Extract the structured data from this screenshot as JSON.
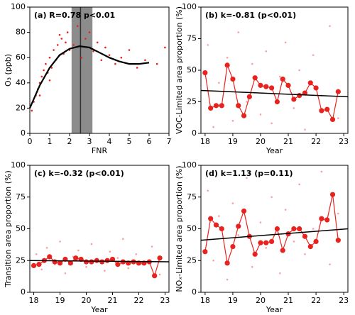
{
  "chart_data": [
    {
      "type": "scatter",
      "label": "(a) R=0.78 p<0.01",
      "xlabel": "FNR",
      "ylabel": "O₃ (ppb)",
      "xlim": [
        0,
        7
      ],
      "xticks": [
        0,
        1,
        2,
        3,
        4,
        5,
        6,
        7
      ],
      "ylim": [
        0,
        100
      ],
      "yticks": [
        0,
        20,
        40,
        60,
        80,
        100
      ],
      "band": [
        2.1,
        3.15
      ],
      "band_color": "#8c8c8c",
      "vline": 2.55,
      "vline_color": "#333333",
      "cloud": {
        "color": "#e8231f",
        "x": [
          0.1,
          0.2,
          0.3,
          0.4,
          0.5,
          0.6,
          0.7,
          0.8,
          0.9,
          1.0,
          1.1,
          1.2,
          1.3,
          1.4,
          1.5,
          1.6,
          1.7,
          1.8,
          1.9,
          2.0,
          2.2,
          2.4,
          2.6,
          2.8,
          3.0,
          3.2,
          3.4,
          3.6,
          3.8,
          4.0,
          4.3,
          4.6,
          5.0,
          5.4,
          5.8,
          6.4,
          6.8,
          0.5,
          1.0,
          1.5
        ],
        "values": [
          18,
          25,
          30,
          35,
          40,
          45,
          50,
          55,
          48,
          60,
          52,
          66,
          58,
          70,
          62,
          75,
          63,
          72,
          80,
          66,
          70,
          85,
          60,
          75,
          80,
          65,
          72,
          58,
          68,
          62,
          55,
          60,
          66,
          52,
          58,
          55,
          68,
          30,
          42,
          78
        ]
      },
      "fit": {
        "color": "#000000",
        "x": [
          0,
          0.5,
          1,
          1.5,
          2,
          2.5,
          3,
          3.5,
          4,
          4.5,
          5,
          5.5,
          6
        ],
        "values": [
          20,
          38,
          52,
          62,
          67,
          69,
          68,
          64,
          60,
          57,
          55,
          55,
          56
        ]
      }
    },
    {
      "type": "scatter",
      "label": "(b)  k=-0.81 (p<0.01)",
      "xlabel": "Year",
      "ylabel": "VOC-Limited area proportion (%)",
      "xlim": [
        17.85,
        23.15
      ],
      "xticks": [
        18,
        19,
        20,
        21,
        22,
        23
      ],
      "ylim": [
        0,
        100
      ],
      "yticks": [
        0,
        25,
        50,
        75,
        100
      ],
      "cloud": {
        "color": "#f4a3a0",
        "x": [
          18.1,
          18.3,
          18.5,
          18.8,
          19.0,
          19.2,
          19.5,
          19.7,
          20.0,
          20.2,
          20.4,
          20.7,
          20.9,
          21.2,
          21.4,
          21.6,
          21.9,
          22.2,
          22.5,
          22.8
        ],
        "values": [
          70,
          5,
          40,
          60,
          10,
          80,
          25,
          55,
          15,
          65,
          8,
          45,
          72,
          20,
          50,
          3,
          62,
          30,
          85,
          12
        ]
      },
      "series": [
        {
          "color": "#e8231f",
          "x": [
            18.0,
            18.2,
            18.4,
            18.6,
            18.8,
            19.0,
            19.2,
            19.4,
            19.6,
            19.8,
            20.0,
            20.2,
            20.4,
            20.6,
            20.8,
            21.0,
            21.2,
            21.4,
            21.6,
            21.8,
            22.0,
            22.2,
            22.4,
            22.6,
            22.8
          ],
          "values": [
            48,
            20,
            22,
            22,
            54,
            43,
            22,
            14,
            29,
            44,
            38,
            37,
            36,
            25,
            43,
            38,
            27,
            30,
            32,
            40,
            36,
            18,
            19,
            11,
            33
          ]
        }
      ],
      "fit": {
        "color": "#000000",
        "x": [
          17.85,
          23.15
        ],
        "values": [
          34,
          29
        ]
      }
    },
    {
      "type": "scatter",
      "label": "(c)  k=-0.32 (p<0.01)",
      "xlabel": "Year",
      "ylabel": "Transition area proportion (%)",
      "xlim": [
        17.85,
        23.15
      ],
      "xticks": [
        18,
        19,
        20,
        21,
        22,
        23
      ],
      "ylim": [
        0,
        100
      ],
      "yticks": [
        0,
        25,
        50,
        75,
        100
      ],
      "cloud": {
        "color": "#f4a3a0",
        "x": [
          18.1,
          18.3,
          18.5,
          18.8,
          19.0,
          19.2,
          19.5,
          19.7,
          20.0,
          20.2,
          20.4,
          20.7,
          20.9,
          21.2,
          21.4,
          21.6,
          21.9,
          22.2,
          22.5,
          22.8
        ],
        "values": [
          30,
          18,
          35,
          22,
          40,
          15,
          28,
          33,
          20,
          38,
          25,
          17,
          32,
          27,
          42,
          19,
          30,
          23,
          36,
          14
        ]
      },
      "series": [
        {
          "color": "#e8231f",
          "x": [
            18.0,
            18.2,
            18.4,
            18.6,
            18.8,
            19.0,
            19.2,
            19.4,
            19.6,
            19.8,
            20.0,
            20.2,
            20.4,
            20.6,
            20.8,
            21.0,
            21.2,
            21.4,
            21.6,
            21.8,
            22.0,
            22.2,
            22.4,
            22.6,
            22.8
          ],
          "values": [
            21,
            22,
            25,
            28,
            24,
            23,
            26,
            23,
            27,
            26,
            24,
            24,
            25,
            24,
            25,
            26,
            22,
            24,
            23,
            24,
            23,
            23,
            24,
            13,
            27
          ]
        }
      ],
      "fit": {
        "color": "#000000",
        "x": [
          17.85,
          23.15
        ],
        "values": [
          25,
          24
        ]
      }
    },
    {
      "type": "scatter",
      "label": "(d)  k=1.13 (p=0.11)",
      "xlabel": "Year",
      "ylabel": "NOₓ-Limited area proportion (%)",
      "xlim": [
        17.85,
        23.15
      ],
      "xticks": [
        18,
        19,
        20,
        21,
        22,
        23
      ],
      "ylim": [
        0,
        100
      ],
      "yticks": [
        0,
        25,
        50,
        75,
        100
      ],
      "cloud": {
        "color": "#f4a3a0",
        "x": [
          18.1,
          18.3,
          18.5,
          18.8,
          19.0,
          19.2,
          19.5,
          19.7,
          20.0,
          20.2,
          20.4,
          20.7,
          20.9,
          21.2,
          21.4,
          21.6,
          21.9,
          22.2,
          22.5,
          22.8
        ],
        "values": [
          80,
          25,
          60,
          10,
          70,
          45,
          90,
          20,
          55,
          35,
          75,
          15,
          65,
          40,
          85,
          30,
          50,
          95,
          22,
          62
        ]
      },
      "series": [
        {
          "color": "#e8231f",
          "x": [
            18.0,
            18.2,
            18.4,
            18.6,
            18.8,
            19.0,
            19.2,
            19.4,
            19.6,
            19.8,
            20.0,
            20.2,
            20.4,
            20.6,
            20.8,
            21.0,
            21.2,
            21.4,
            21.6,
            21.8,
            22.0,
            22.2,
            22.4,
            22.6,
            22.8
          ],
          "values": [
            32,
            58,
            53,
            50,
            23,
            36,
            52,
            64,
            44,
            30,
            39,
            39,
            40,
            50,
            33,
            46,
            50,
            50,
            44,
            36,
            40,
            58,
            57,
            77,
            41
          ]
        }
      ],
      "fit": {
        "color": "#000000",
        "x": [
          17.85,
          23.15
        ],
        "values": [
          41,
          50
        ]
      }
    }
  ]
}
